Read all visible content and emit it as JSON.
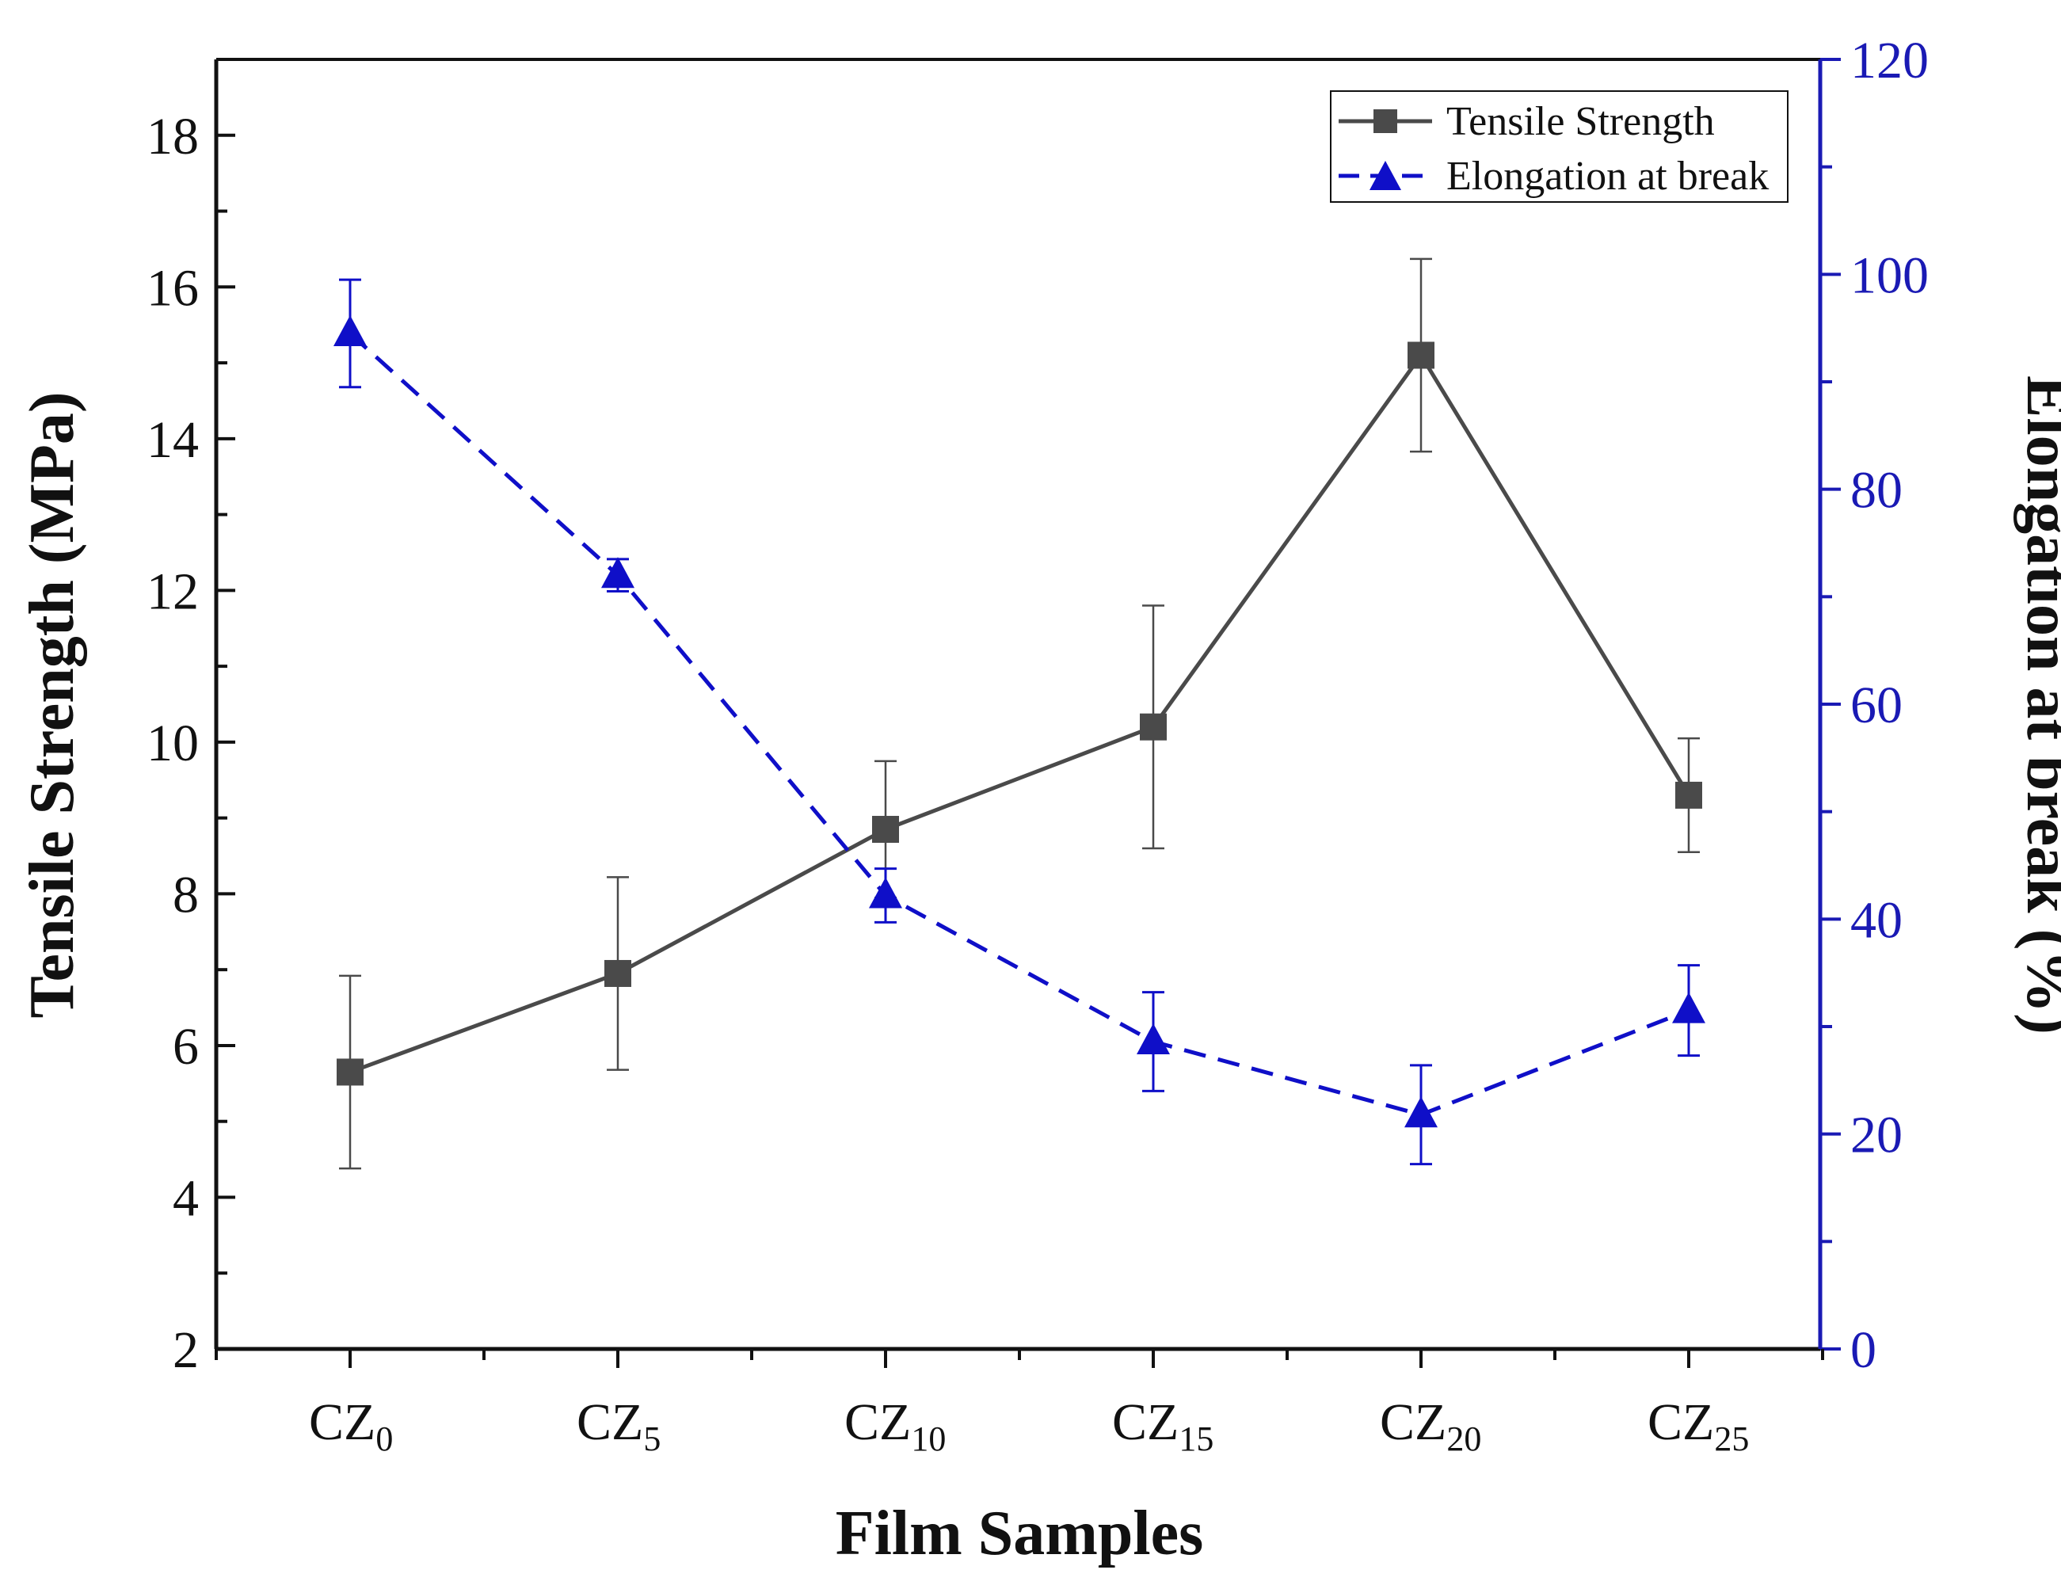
{
  "chart_data": {
    "type": "line",
    "title": "",
    "xlabel": "Film Samples",
    "ylabel": "Tensile Strength (MPa)",
    "y2label": "Elongation at break (%)",
    "categories": [
      {
        "base": "CZ",
        "sub": "0"
      },
      {
        "base": "CZ",
        "sub": "5"
      },
      {
        "base": "CZ",
        "sub": "10"
      },
      {
        "base": "CZ",
        "sub": "15"
      },
      {
        "base": "CZ",
        "sub": "20"
      },
      {
        "base": "CZ",
        "sub": "25"
      }
    ],
    "ylim": [
      2,
      19
    ],
    "yticks": [
      "2",
      "4",
      "6",
      "8",
      "10",
      "12",
      "14",
      "16",
      "18"
    ],
    "y2lim": [
      0,
      120
    ],
    "y2ticks": [
      "0",
      "20",
      "40",
      "60",
      "80",
      "100",
      "120"
    ],
    "grid": false,
    "legend_position": "top-right",
    "series": [
      {
        "name": "Tensile Strength",
        "axis": "left",
        "marker": "square",
        "line_style": "solid",
        "color": "#4a4a4a",
        "values": [
          5.65,
          6.95,
          8.85,
          10.2,
          15.1,
          9.3
        ],
        "errors": [
          1.27,
          1.27,
          0.9,
          1.6,
          1.27,
          0.75
        ]
      },
      {
        "name": "Elongation at break",
        "axis": "right",
        "marker": "triangle",
        "line_style": "dashed",
        "color": "#0f0fc8",
        "values": [
          94.5,
          72.0,
          42.2,
          28.6,
          21.8,
          31.5
        ],
        "errors": [
          5.0,
          1.5,
          2.5,
          4.6,
          4.6,
          4.2
        ]
      }
    ]
  },
  "colors": {
    "left_axis": "#111111",
    "right_axis": "#1a1ab4"
  }
}
